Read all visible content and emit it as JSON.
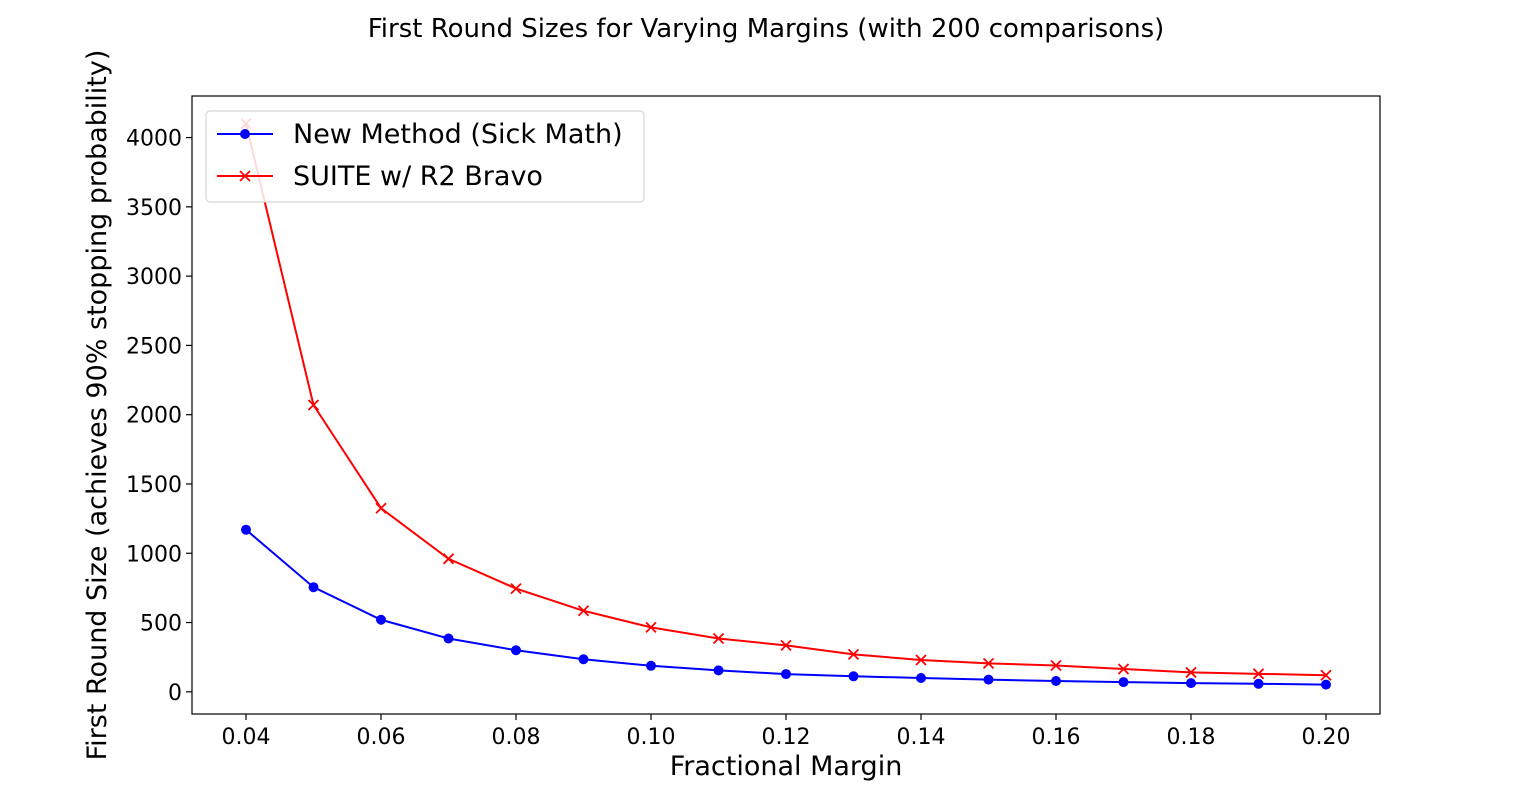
{
  "chart_data": {
    "type": "line",
    "title": "First Round Sizes for Varying Margins (with 200 comparisons)",
    "xlabel": "Fractional Margin",
    "ylabel": "First Round Size (achieves 90% stopping probability)",
    "x": [
      0.04,
      0.05,
      0.06,
      0.07,
      0.08,
      0.09,
      0.1,
      0.11,
      0.12,
      0.13,
      0.14,
      0.15,
      0.16,
      0.17,
      0.18,
      0.19,
      0.2
    ],
    "xlim": [
      0.032,
      0.208
    ],
    "ylim": [
      -160,
      4300
    ],
    "x_ticks": [
      0.04,
      0.06,
      0.08,
      0.1,
      0.12,
      0.14,
      0.16,
      0.18,
      0.2
    ],
    "x_tick_labels": [
      "0.04",
      "0.06",
      "0.08",
      "0.10",
      "0.12",
      "0.14",
      "0.16",
      "0.18",
      "0.20"
    ],
    "y_ticks": [
      0,
      500,
      1000,
      1500,
      2000,
      2500,
      3000,
      3500,
      4000
    ],
    "y_tick_labels": [
      "0",
      "500",
      "1000",
      "1500",
      "2000",
      "2500",
      "3000",
      "3500",
      "4000"
    ],
    "grid": false,
    "legend_position": "top-left",
    "series": [
      {
        "name": "New Method (Sick Math)",
        "color": "#0000ff",
        "marker": "circle",
        "values": [
          1170,
          755,
          520,
          385,
          300,
          235,
          188,
          155,
          128,
          112,
          100,
          88,
          78,
          70,
          63,
          58,
          52
        ]
      },
      {
        "name": "SUITE w/ R2 Bravo",
        "color": "#ff0000",
        "marker": "x",
        "values": [
          4100,
          2070,
          1325,
          960,
          745,
          585,
          465,
          385,
          335,
          270,
          230,
          205,
          190,
          165,
          140,
          130,
          120
        ]
      }
    ]
  }
}
